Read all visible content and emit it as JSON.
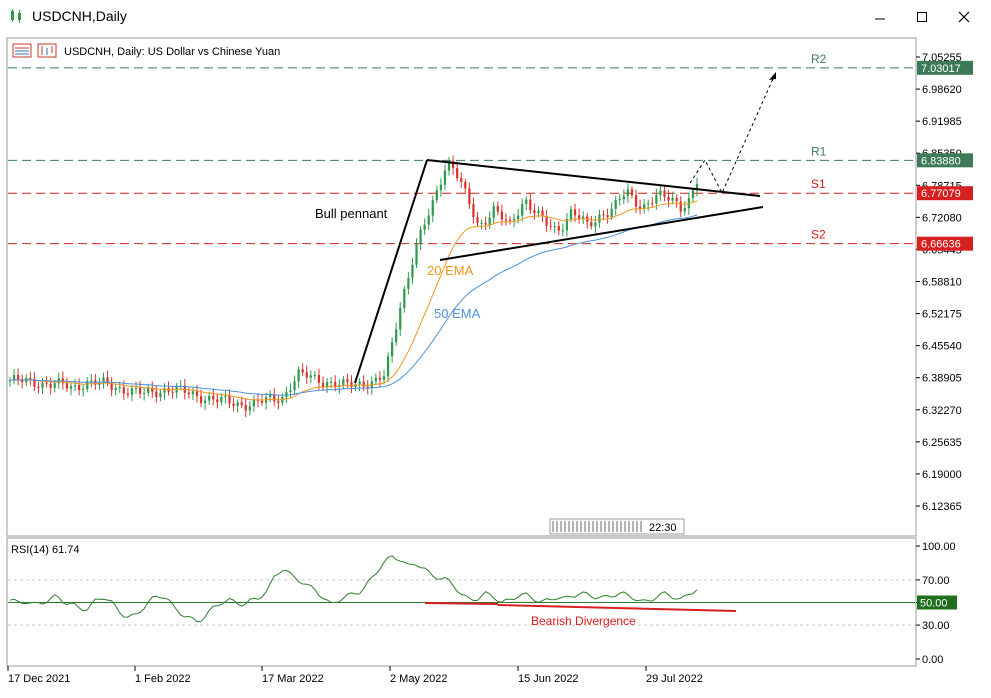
{
  "window": {
    "title": "USDCNH,Daily",
    "minimize_icon": "minimize-icon",
    "maximize_icon": "maximize-icon",
    "close_icon": "close-icon"
  },
  "chart_header": {
    "symbol_desc": "USDCNH, Daily:  US Dollar vs Chinese Yuan"
  },
  "price_axis": {
    "ticks": [
      "7.05255",
      "6.98620",
      "6.91985",
      "6.85350",
      "6.78715",
      "6.72080",
      "6.65445",
      "6.58810",
      "6.52175",
      "6.45540",
      "6.38905",
      "6.32270",
      "6.25635",
      "6.19000",
      "6.12365"
    ],
    "level_labels": {
      "R2": "7.03017",
      "R1": "6.83880",
      "S1": "6.77079",
      "S2": "6.66636"
    }
  },
  "levels": [
    {
      "name": "R2",
      "value": 7.03017,
      "color": "#3c7a5a"
    },
    {
      "name": "R1",
      "value": 6.8388,
      "color": "#3c7a5a"
    },
    {
      "name": "S1",
      "value": 6.77079,
      "color": "#d62020"
    },
    {
      "name": "S2",
      "value": 6.66636,
      "color": "#d62020"
    }
  ],
  "annotations": {
    "pattern": "Bull pennant",
    "ema20": "20 EMA",
    "ema50": "50 EMA",
    "divergence": "Bearish Divergence",
    "scroll_time": "22:30"
  },
  "rsi": {
    "label": "RSI(14) 61.74",
    "ticks": [
      "100.00",
      "70.00",
      "50.00",
      "30.00",
      "0.00"
    ],
    "current_label": "50.00"
  },
  "time_axis": {
    "labels": [
      "17 Dec 2021",
      "1 Feb 2022",
      "17 Mar 2022",
      "2 May 2022",
      "15 Jun 2022",
      "29 Jul 2022"
    ]
  },
  "colors": {
    "bull": "#2e9a4e",
    "bear": "#d9332b",
    "ema20": "#f0961e",
    "ema50": "#4a90d9",
    "rsi_line": "#2e7d2e",
    "resistance": "#3c7a5a",
    "support": "#d62020"
  },
  "chart_data": {
    "type": "candlestick",
    "symbol": "USDCNH",
    "timeframe": "Daily",
    "ylim": [
      6.09,
      7.08
    ],
    "close_path": [
      6.384,
      6.382,
      6.381,
      6.38,
      6.378,
      6.376,
      6.375,
      6.372,
      6.368,
      6.375,
      6.38,
      6.378,
      6.376,
      6.372,
      6.368,
      6.364,
      6.36,
      6.355,
      6.358,
      6.362,
      6.366,
      6.365,
      6.36,
      6.356,
      6.352,
      6.348,
      6.345,
      6.34,
      6.338,
      6.336,
      6.334,
      6.335,
      6.338,
      6.342,
      6.346,
      6.35,
      6.375,
      6.395,
      6.392,
      6.388,
      6.384,
      6.378,
      6.374,
      6.372,
      6.376,
      6.378,
      6.38,
      6.382,
      6.392,
      6.46,
      6.54,
      6.6,
      6.66,
      6.7,
      6.74,
      6.79,
      6.84,
      6.82,
      6.78,
      6.74,
      6.7,
      6.72,
      6.74,
      6.72,
      6.7,
      6.73,
      6.76,
      6.74,
      6.72,
      6.7,
      6.69,
      6.71,
      6.74,
      6.72,
      6.7,
      6.71,
      6.73,
      6.74,
      6.76,
      6.77,
      6.75,
      6.74,
      6.76,
      6.77,
      6.76,
      6.75,
      6.74,
      6.76,
      6.8
    ],
    "rsi_path": [
      52,
      50,
      51,
      48,
      50,
      52,
      56,
      50,
      48,
      45,
      44,
      52,
      55,
      50,
      42,
      37,
      38,
      45,
      52,
      56,
      55,
      45,
      40,
      36,
      33,
      38,
      45,
      50,
      52,
      50,
      48,
      52,
      55,
      60,
      75,
      80,
      74,
      70,
      65,
      62,
      55,
      48,
      52,
      55,
      58,
      60,
      68,
      78,
      86,
      91,
      88,
      82,
      85,
      80,
      74,
      72,
      70,
      64,
      56,
      52,
      54,
      58,
      55,
      50,
      52,
      56,
      57,
      54,
      50,
      52,
      55,
      53,
      56,
      58,
      57,
      55,
      54,
      56,
      58,
      57,
      54,
      50,
      52,
      56,
      58,
      55,
      52,
      58,
      61.74
    ]
  }
}
